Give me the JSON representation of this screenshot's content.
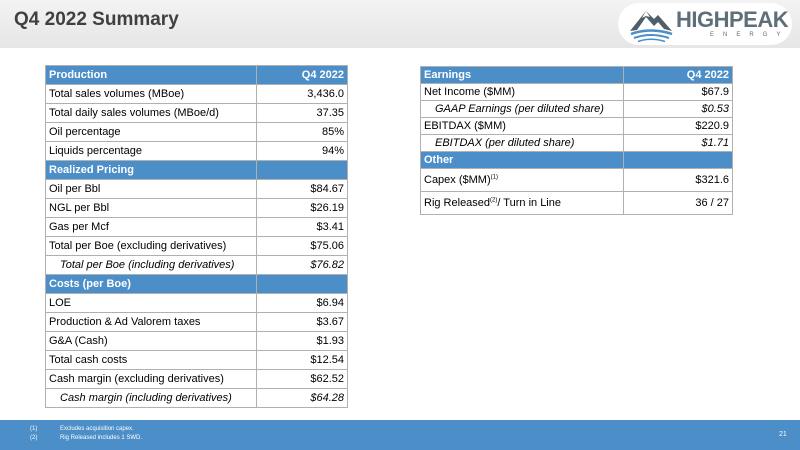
{
  "page": {
    "title": "Q4 2022 Summary",
    "page_number": "21"
  },
  "logo": {
    "word_high": "HIGH",
    "word_peak": "PEAK",
    "subtitle": "ENERGY"
  },
  "production": {
    "header": {
      "label": "Production",
      "value": "Q4 2022"
    },
    "rows": [
      {
        "label": "Total sales volumes (MBoe)",
        "value": "3,436.0"
      },
      {
        "label": "Total daily sales volumes (MBoe/d)",
        "value": "37.35"
      },
      {
        "label": "Oil percentage",
        "value": "85%"
      },
      {
        "label": "Liquids percentage",
        "value": "94%"
      }
    ]
  },
  "realized_pricing": {
    "header": "Realized Pricing",
    "rows": [
      {
        "label": "Oil per Bbl",
        "value": "$84.67"
      },
      {
        "label": "NGL per Bbl",
        "value": "$26.19"
      },
      {
        "label": "Gas per Mcf",
        "value": "$3.41"
      },
      {
        "label": "Total per Boe (excluding derivatives)",
        "value": "$75.06"
      },
      {
        "label": "Total per Boe (including derivatives)",
        "value": "$76.82"
      }
    ]
  },
  "costs": {
    "header": "Costs (per Boe)",
    "rows": [
      {
        "label": "LOE",
        "value": "$6.94"
      },
      {
        "label": "Production & Ad Valorem taxes",
        "value": "$3.67"
      },
      {
        "label": "G&A (Cash)",
        "value": "$1.93"
      },
      {
        "label": "Total cash costs",
        "value": "$12.54"
      },
      {
        "label": "Cash margin (excluding derivatives)",
        "value": "$62.52"
      },
      {
        "label": "Cash margin (including derivatives)",
        "value": "$64.28"
      }
    ]
  },
  "earnings": {
    "header": {
      "label": "Earnings",
      "value": "Q4 2022"
    },
    "rows": [
      {
        "label": "Net Income ($MM)",
        "value": "$67.9"
      },
      {
        "label": "GAAP Earnings (per diluted share)",
        "value": "$0.53"
      },
      {
        "label": "EBITDAX ($MM)",
        "value": "$220.9"
      },
      {
        "label": "EBITDAX (per diluted share)",
        "value": "$1.71"
      }
    ]
  },
  "other": {
    "header": "Other",
    "capex": {
      "label": "Capex ($MM)",
      "sup": "(1)",
      "value": "$321.6"
    },
    "rig": {
      "label_a": "Rig Released",
      "sup": "(2)",
      "label_b": "/ Turn in Line",
      "value": "36 / 27"
    }
  },
  "footnotes": [
    {
      "num": "(1)",
      "text": "Excludes acquisition capex."
    },
    {
      "num": "(2)",
      "text": "Rig Released includes 1 SWD."
    }
  ]
}
